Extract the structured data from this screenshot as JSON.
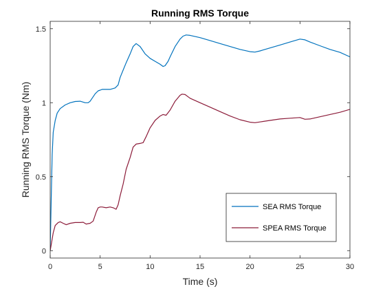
{
  "chart_data": {
    "type": "line",
    "title": "Running RMS Torque",
    "xlabel": "Time (s)",
    "ylabel": "Running RMS Torque (Nm)",
    "xlim": [
      0,
      30
    ],
    "ylim": [
      -0.05,
      1.55
    ],
    "x_ticks": [
      0,
      5,
      10,
      15,
      20,
      25,
      30
    ],
    "x_tick_labels": [
      "0",
      "5",
      "10",
      "15",
      "20",
      "25",
      "30"
    ],
    "y_ticks": [
      0,
      0.5,
      1,
      1.5
    ],
    "y_tick_labels": [
      "0",
      "0.5",
      "1",
      "1.5"
    ],
    "grid": false,
    "legend_position": "bottom-right",
    "series": [
      {
        "name": "SEA RMS Torque",
        "color": "#0072BD",
        "x": [
          0,
          0.1,
          0.2,
          0.3,
          0.5,
          0.7,
          1.0,
          1.5,
          2.0,
          2.5,
          3.0,
          3.5,
          3.8,
          4.0,
          4.2,
          4.5,
          4.8,
          5.0,
          5.2,
          5.5,
          6.0,
          6.5,
          6.8,
          7.0,
          7.3,
          7.6,
          8.0,
          8.3,
          8.6,
          9.0,
          9.5,
          10.0,
          10.5,
          11.0,
          11.3,
          11.5,
          11.8,
          12.0,
          12.5,
          13.0,
          13.3,
          13.6,
          14.0,
          15.0,
          16.0,
          17.0,
          18.0,
          19.0,
          20.0,
          20.5,
          21.0,
          22.0,
          23.0,
          24.0,
          25.0,
          25.5,
          26.0,
          27.0,
          28.0,
          29.0,
          30.0
        ],
        "y": [
          0.0,
          0.35,
          0.65,
          0.8,
          0.88,
          0.93,
          0.96,
          0.985,
          1.0,
          1.008,
          1.01,
          1.0,
          1.0,
          1.01,
          1.03,
          1.06,
          1.08,
          1.085,
          1.09,
          1.09,
          1.09,
          1.1,
          1.12,
          1.17,
          1.22,
          1.27,
          1.33,
          1.38,
          1.4,
          1.38,
          1.33,
          1.3,
          1.28,
          1.26,
          1.245,
          1.25,
          1.28,
          1.31,
          1.38,
          1.43,
          1.45,
          1.458,
          1.455,
          1.44,
          1.42,
          1.4,
          1.38,
          1.36,
          1.345,
          1.342,
          1.35,
          1.37,
          1.39,
          1.41,
          1.43,
          1.425,
          1.41,
          1.385,
          1.36,
          1.34,
          1.31
        ]
      },
      {
        "name": "SPEA RMS Torque",
        "color": "#8B1A38",
        "x": [
          0,
          0.1,
          0.3,
          0.5,
          0.8,
          1.0,
          1.3,
          1.6,
          2.0,
          2.5,
          3.0,
          3.3,
          3.6,
          4.0,
          4.3,
          4.6,
          4.8,
          5.0,
          5.2,
          5.6,
          6.0,
          6.3,
          6.6,
          6.8,
          7.0,
          7.3,
          7.6,
          8.0,
          8.3,
          8.6,
          9.0,
          9.3,
          9.6,
          10.0,
          10.5,
          11.0,
          11.3,
          11.6,
          12.0,
          12.5,
          13.0,
          13.2,
          13.5,
          14.0,
          15.0,
          16.0,
          17.0,
          18.0,
          19.0,
          20.0,
          20.5,
          21.0,
          22.0,
          23.0,
          24.0,
          25.0,
          25.5,
          26.0,
          27.0,
          28.0,
          29.0,
          30.0
        ],
        "y": [
          0.0,
          0.04,
          0.12,
          0.17,
          0.19,
          0.195,
          0.185,
          0.175,
          0.185,
          0.19,
          0.19,
          0.192,
          0.18,
          0.185,
          0.2,
          0.26,
          0.29,
          0.295,
          0.295,
          0.29,
          0.295,
          0.29,
          0.28,
          0.31,
          0.37,
          0.45,
          0.55,
          0.63,
          0.7,
          0.72,
          0.725,
          0.73,
          0.77,
          0.83,
          0.88,
          0.91,
          0.92,
          0.915,
          0.95,
          1.01,
          1.05,
          1.058,
          1.055,
          1.03,
          1.0,
          0.97,
          0.94,
          0.91,
          0.885,
          0.868,
          0.865,
          0.87,
          0.88,
          0.89,
          0.895,
          0.9,
          0.888,
          0.89,
          0.905,
          0.92,
          0.935,
          0.955
        ]
      }
    ]
  }
}
